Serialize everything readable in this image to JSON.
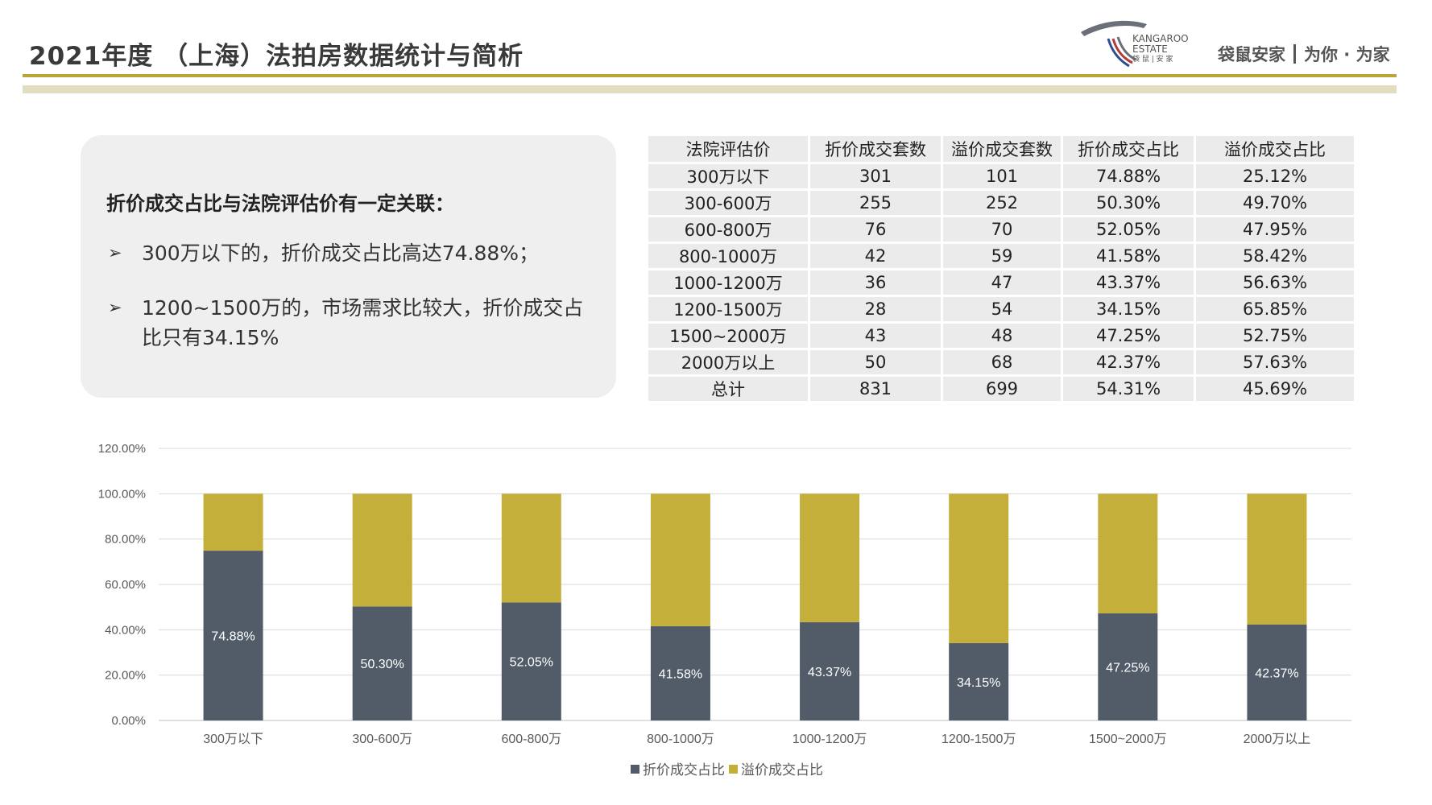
{
  "header": {
    "title": "2021年度 （上海）法拍房数据统计与简析",
    "logo_text_en": "KANGAROO ESTATE",
    "logo_text_cn": "袋 鼠 | 安 家",
    "brand_name": "袋鼠安家",
    "brand_slogan": "为你 · 为家"
  },
  "panel": {
    "heading": "折价成交占比与法院评估价有一定关联：",
    "bullets": [
      "300万以下的，折价成交占比高达74.88%；",
      "1200~1500万的，市场需求比较大，折价成交占比只有34.15%"
    ],
    "bullet_symbol": "➢"
  },
  "table": {
    "headers": [
      "法院评估价",
      "折价成交套数",
      "溢价成交套数",
      "折价成交占比",
      "溢价成交占比"
    ],
    "rows": [
      [
        "300万以下",
        "301",
        "101",
        "74.88%",
        "25.12%"
      ],
      [
        "300-600万",
        "255",
        "252",
        "50.30%",
        "49.70%"
      ],
      [
        "600-800万",
        "76",
        "70",
        "52.05%",
        "47.95%"
      ],
      [
        "800-1000万",
        "42",
        "59",
        "41.58%",
        "58.42%"
      ],
      [
        "1000-1200万",
        "36",
        "47",
        "43.37%",
        "56.63%"
      ],
      [
        "1200-1500万",
        "28",
        "54",
        "34.15%",
        "65.85%"
      ],
      [
        "1500~2000万",
        "43",
        "48",
        "47.25%",
        "52.75%"
      ],
      [
        "2000万以上",
        "50",
        "68",
        "42.37%",
        "57.63%"
      ],
      [
        "总计",
        "831",
        "699",
        "54.31%",
        "45.69%"
      ]
    ]
  },
  "chart_data": {
    "type": "bar",
    "stacked": true,
    "categories": [
      "300万以下",
      "300-600万",
      "600-800万",
      "800-1000万",
      "1000-1200万",
      "1200-1500万",
      "1500~2000万",
      "2000万以上"
    ],
    "series": [
      {
        "name": "折价成交占比",
        "color": "#525c69",
        "values": [
          74.88,
          50.3,
          52.05,
          41.58,
          43.37,
          34.15,
          47.25,
          42.37
        ]
      },
      {
        "name": "溢价成交占比",
        "color": "#c4af3b",
        "values": [
          25.12,
          49.7,
          47.95,
          58.42,
          56.63,
          65.85,
          52.75,
          57.63
        ]
      }
    ],
    "data_labels": [
      "74.88%",
      "50.30%",
      "52.05%",
      "41.58%",
      "43.37%",
      "34.15%",
      "47.25%",
      "42.37%"
    ],
    "y_ticks": [
      "0.00%",
      "20.00%",
      "40.00%",
      "60.00%",
      "80.00%",
      "100.00%",
      "120.00%"
    ],
    "ylim": [
      0,
      120
    ],
    "grid": true,
    "legend_position": "bottom"
  },
  "colors": {
    "accent_gold": "#b8a63a",
    "bar_dark": "#525c69",
    "bar_gold": "#c4af3b"
  }
}
